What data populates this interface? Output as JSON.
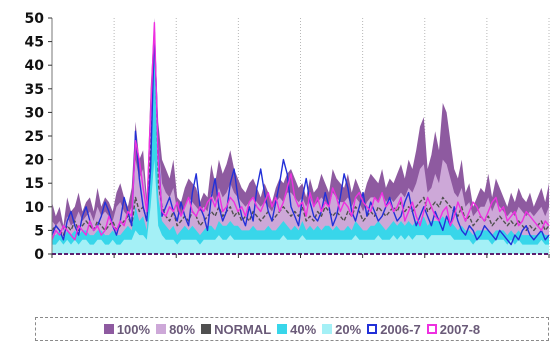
{
  "chart_data": {
    "type": "area",
    "title": "",
    "xlabel": "",
    "ylabel": "",
    "ylim": [
      0,
      50
    ],
    "yticks": [
      "0",
      "5",
      "10",
      "15",
      "20",
      "25",
      "30",
      "35",
      "40",
      "45",
      "50"
    ],
    "xtick_labels": [
      "",
      "",
      "",
      "",
      "",
      "",
      "",
      "",
      ""
    ],
    "grid": "vertical",
    "legend_position": "bottom",
    "series": [
      {
        "name": "100%",
        "kind": "band",
        "color": "#8e5aa0",
        "values": [
          11,
          8,
          10,
          6,
          12,
          9,
          10,
          13,
          9,
          11,
          12,
          9,
          14,
          10,
          12,
          11,
          9,
          13,
          15,
          12,
          10,
          14,
          28,
          20,
          22,
          12,
          35,
          50,
          28,
          20,
          18,
          16,
          20,
          12,
          11,
          14,
          16,
          15,
          14,
          11,
          13,
          12,
          19,
          15,
          20,
          17,
          19,
          22,
          18,
          16,
          14,
          13,
          15,
          16,
          14,
          12,
          15,
          13,
          11,
          14,
          16,
          15,
          17,
          18,
          16,
          14,
          15,
          12,
          16,
          13,
          14,
          17,
          15,
          13,
          18,
          16,
          15,
          14,
          17,
          13,
          16,
          14,
          12,
          15,
          17,
          16,
          15,
          18,
          14,
          16,
          15,
          17,
          19,
          16,
          20,
          18,
          22,
          27,
          29,
          18,
          21,
          26,
          22,
          32,
          30,
          24,
          18,
          16,
          20,
          13,
          15,
          10,
          12,
          14,
          13,
          17,
          12,
          16,
          14,
          12,
          10,
          13,
          11,
          14,
          12,
          11,
          13,
          10,
          12,
          14,
          11,
          15
        ]
      },
      {
        "name": "80%",
        "kind": "band",
        "color": "#cda8d8",
        "values": [
          7,
          6,
          7,
          5,
          8,
          6,
          7,
          9,
          7,
          8,
          9,
          7,
          10,
          8,
          9,
          8,
          7,
          10,
          11,
          9,
          8,
          10,
          20,
          16,
          18,
          10,
          30,
          48,
          24,
          15,
          13,
          12,
          14,
          9,
          8,
          10,
          12,
          11,
          10,
          9,
          10,
          9,
          13,
          11,
          14,
          12,
          13,
          15,
          13,
          12,
          11,
          10,
          11,
          12,
          11,
          10,
          11,
          10,
          9,
          11,
          12,
          11,
          13,
          13,
          12,
          11,
          12,
          10,
          12,
          10,
          11,
          12,
          11,
          10,
          13,
          12,
          11,
          11,
          12,
          10,
          12,
          11,
          9,
          11,
          12,
          12,
          11,
          13,
          11,
          12,
          11,
          12,
          13,
          12,
          14,
          13,
          15,
          18,
          19,
          13,
          14,
          17,
          15,
          20,
          19,
          16,
          13,
          12,
          14,
          10,
          11,
          8,
          9,
          10,
          10,
          12,
          9,
          11,
          10,
          9,
          8,
          9,
          8,
          10,
          9,
          8,
          9,
          8,
          9,
          10,
          8,
          10
        ]
      },
      {
        "name": "NORMAL",
        "kind": "line",
        "color": "#505050",
        "dash": "4 2",
        "values": [
          5,
          6,
          5,
          4,
          6,
          5,
          7,
          5,
          6,
          7,
          6,
          5,
          7,
          6,
          5,
          6,
          7,
          5,
          6,
          7,
          8,
          6,
          12,
          9,
          10,
          7,
          22,
          40,
          15,
          10,
          8,
          7,
          9,
          6,
          7,
          8,
          7,
          9,
          8,
          6,
          7,
          8,
          9,
          8,
          10,
          8,
          9,
          10,
          8,
          9,
          7,
          8,
          7,
          9,
          8,
          7,
          8,
          9,
          7,
          8,
          9,
          10,
          9,
          8,
          9,
          8,
          10,
          7,
          8,
          7,
          9,
          8,
          10,
          9,
          8,
          9,
          8,
          7,
          9,
          8,
          10,
          9,
          7,
          8,
          9,
          8,
          10,
          9,
          8,
          9,
          10,
          9,
          11,
          9,
          10,
          9,
          10,
          11,
          12,
          9,
          10,
          11,
          10,
          12,
          11,
          10,
          9,
          8,
          10,
          7,
          8,
          6,
          7,
          8,
          7,
          8,
          6,
          7,
          8,
          7,
          6,
          7,
          6,
          7,
          6,
          5,
          6,
          5,
          6,
          7,
          5,
          6
        ]
      },
      {
        "name": "40%",
        "kind": "band",
        "color": "#38d6ea",
        "values": [
          4,
          4,
          5,
          3,
          5,
          4,
          5,
          4,
          5,
          5,
          4,
          4,
          5,
          5,
          4,
          4,
          5,
          4,
          4,
          5,
          6,
          5,
          10,
          7,
          8,
          5,
          20,
          45,
          12,
          7,
          6,
          5,
          6,
          4,
          5,
          6,
          5,
          6,
          5,
          4,
          5,
          6,
          6,
          5,
          7,
          6,
          6,
          7,
          6,
          6,
          5,
          5,
          5,
          6,
          5,
          5,
          5,
          6,
          5,
          5,
          6,
          7,
          6,
          5,
          6,
          5,
          7,
          5,
          6,
          5,
          6,
          5,
          6,
          6,
          5,
          6,
          5,
          5,
          6,
          5,
          7,
          6,
          5,
          5,
          6,
          6,
          7,
          6,
          5,
          6,
          7,
          6,
          7,
          6,
          7,
          6,
          7,
          7,
          8,
          6,
          7,
          7,
          7,
          8,
          7,
          7,
          6,
          5,
          6,
          5,
          5,
          4,
          5,
          5,
          5,
          5,
          4,
          5,
          5,
          5,
          4,
          5,
          4,
          5,
          4,
          4,
          4,
          4,
          4,
          5,
          4,
          4
        ]
      },
      {
        "name": "20%",
        "kind": "band",
        "color": "#a4f0f6",
        "values": [
          2,
          2,
          3,
          2,
          3,
          2,
          3,
          2,
          3,
          3,
          2,
          2,
          3,
          3,
          2,
          2,
          3,
          2,
          2,
          3,
          3,
          3,
          5,
          4,
          4,
          3,
          10,
          20,
          6,
          4,
          3,
          3,
          3,
          2,
          3,
          3,
          3,
          3,
          3,
          2,
          3,
          3,
          3,
          3,
          4,
          3,
          3,
          4,
          3,
          3,
          3,
          3,
          3,
          3,
          3,
          3,
          3,
          3,
          3,
          3,
          3,
          4,
          3,
          3,
          3,
          3,
          4,
          3,
          3,
          3,
          3,
          3,
          3,
          3,
          3,
          3,
          3,
          3,
          3,
          3,
          4,
          3,
          3,
          3,
          3,
          3,
          4,
          3,
          3,
          3,
          4,
          3,
          4,
          3,
          4,
          3,
          4,
          4,
          4,
          3,
          4,
          4,
          4,
          4,
          4,
          4,
          3,
          3,
          3,
          3,
          3,
          2,
          3,
          3,
          3,
          3,
          2,
          3,
          3,
          3,
          2,
          3,
          2,
          3,
          2,
          2,
          2,
          2,
          2,
          3,
          2,
          2
        ]
      },
      {
        "name": "2006-7",
        "kind": "line",
        "color": "#2230d8",
        "values": [
          4,
          6,
          5,
          3,
          7,
          9,
          6,
          4,
          8,
          10,
          7,
          5,
          6,
          8,
          11,
          9,
          6,
          4,
          7,
          12,
          9,
          6,
          26,
          16,
          10,
          7,
          18,
          47,
          22,
          8,
          10,
          12,
          9,
          7,
          11,
          8,
          6,
          13,
          17,
          10,
          8,
          5,
          12,
          16,
          10,
          7,
          9,
          15,
          18,
          12,
          8,
          6,
          10,
          7,
          14,
          18,
          13,
          9,
          7,
          11,
          15,
          20,
          17,
          10,
          8,
          6,
          12,
          16,
          11,
          8,
          7,
          9,
          13,
          10,
          6,
          8,
          12,
          17,
          14,
          9,
          7,
          10,
          13,
          8,
          11,
          9,
          7,
          8,
          10,
          12,
          9,
          7,
          8,
          11,
          13,
          9,
          6,
          8,
          10,
          8,
          6,
          9,
          7,
          5,
          8,
          6,
          10,
          7,
          5,
          4,
          6,
          5,
          3,
          4,
          6,
          5,
          4,
          3,
          5,
          4,
          3,
          2,
          4,
          3,
          5,
          6,
          4,
          3,
          4,
          5,
          3,
          4
        ]
      },
      {
        "name": "2007-8",
        "kind": "line",
        "color": "#ee30e0",
        "values": [
          3,
          5,
          4,
          6,
          5,
          4,
          3,
          6,
          5,
          4,
          7,
          5,
          6,
          4,
          5,
          8,
          6,
          5,
          7,
          6,
          9,
          8,
          24,
          20,
          14,
          9,
          30,
          49,
          20,
          9,
          8,
          10,
          9,
          11,
          8,
          10,
          12,
          9,
          8,
          10,
          9,
          11,
          12,
          10,
          13,
          9,
          10,
          12,
          11,
          9,
          10,
          8,
          11,
          12,
          10,
          9,
          11,
          13,
          10,
          12,
          9,
          11,
          14,
          17,
          12,
          10,
          11,
          8,
          13,
          10,
          12,
          9,
          11,
          10,
          14,
          12,
          9,
          11,
          10,
          8,
          12,
          13,
          11,
          10,
          9,
          12,
          11,
          13,
          10,
          11,
          9,
          10,
          12,
          7,
          9,
          11,
          8,
          6,
          9,
          12,
          10,
          8,
          7,
          9,
          10,
          6,
          8,
          11,
          9,
          7,
          9,
          11,
          10,
          8,
          7,
          9,
          11,
          12,
          9,
          10,
          7,
          8,
          9,
          6,
          7,
          9,
          8,
          7,
          6,
          5,
          7,
          6
        ]
      }
    ]
  }
}
